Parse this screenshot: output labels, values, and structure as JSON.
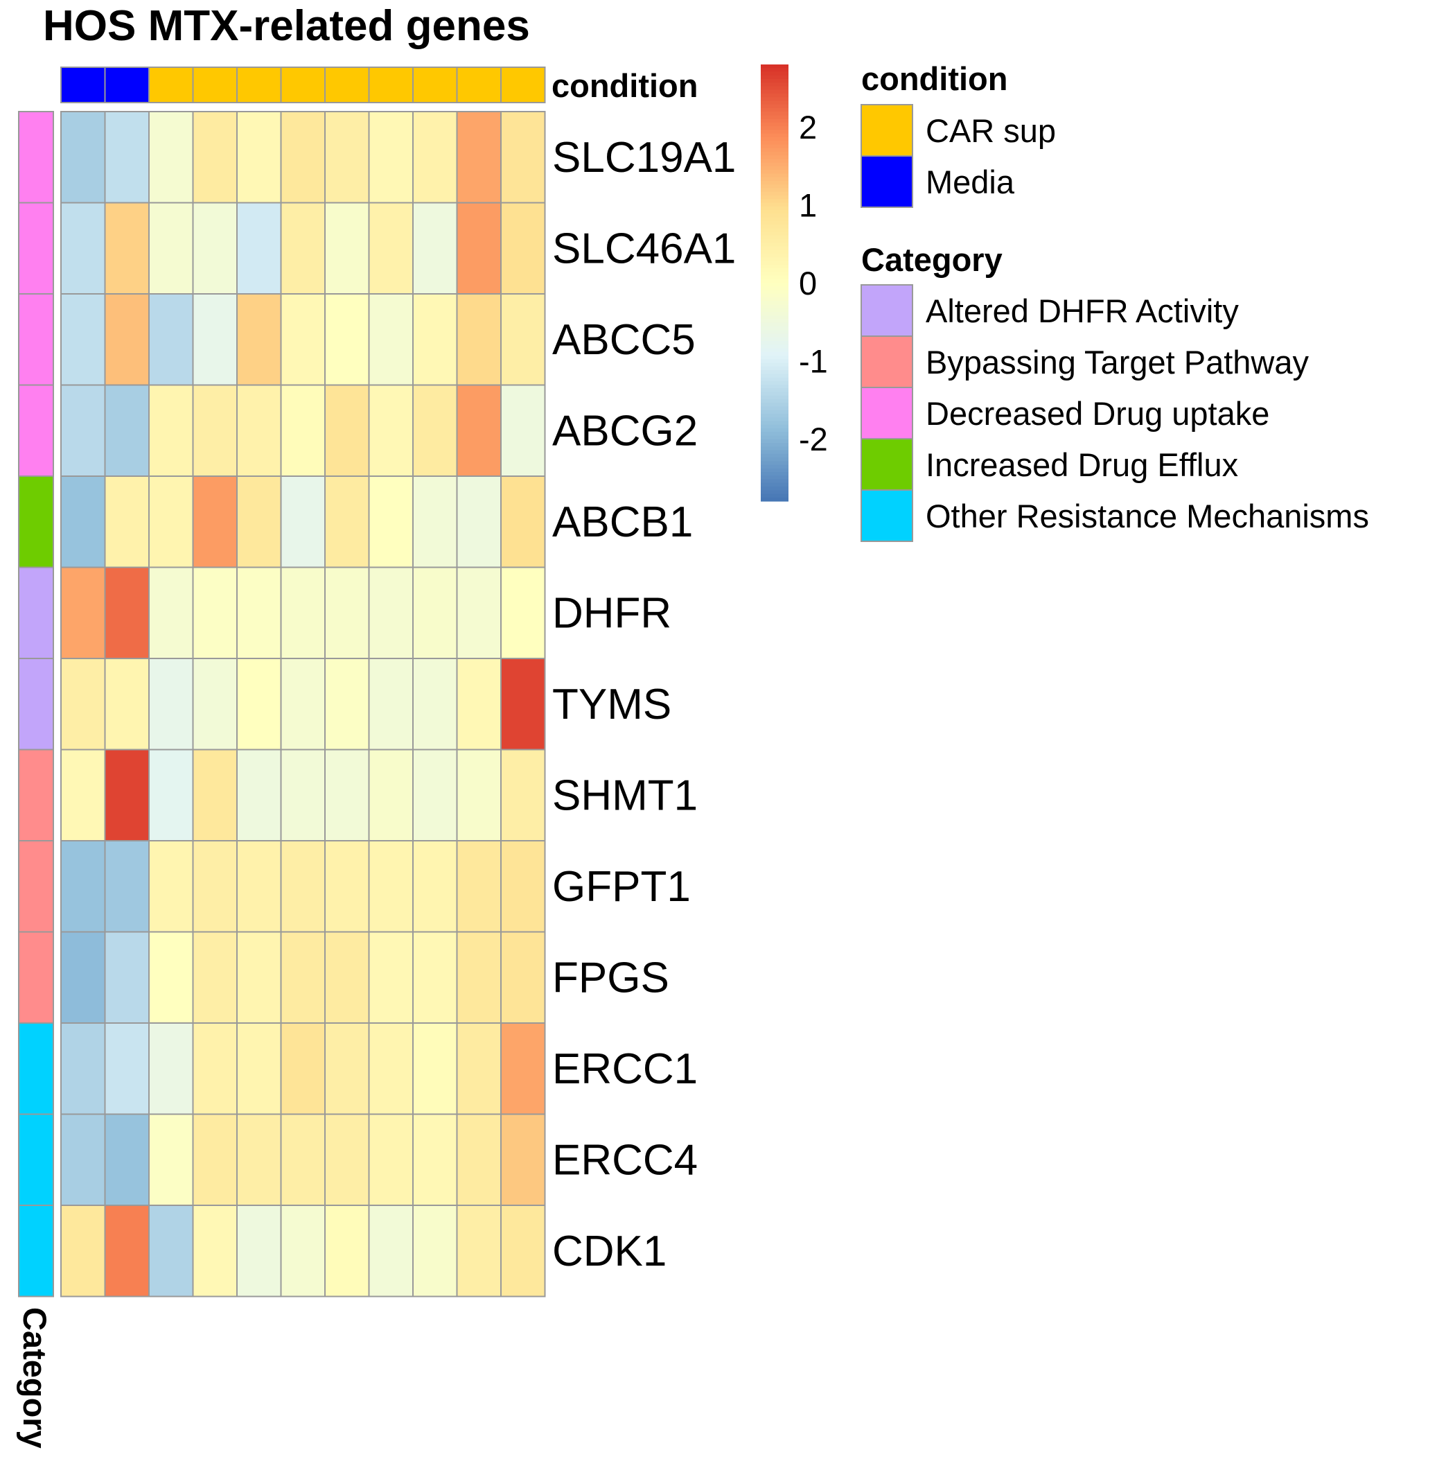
{
  "chart_data": {
    "type": "heatmap",
    "title": "HOS MTX-related genes",
    "rows": [
      "SLC19A1",
      "SLC46A1",
      "ABCC5",
      "ABCG2",
      "ABCB1",
      "DHFR",
      "TYMS",
      "SHMT1",
      "GFPT1",
      "FPGS",
      "ERCC1",
      "ERCC4",
      "CDK1"
    ],
    "row_category": [
      "Decreased Drug uptake",
      "Decreased Drug uptake",
      "Decreased Drug uptake",
      "Decreased Drug uptake",
      "Increased Drug Efflux",
      "Altered DHFR Activity",
      "Altered DHFR Activity",
      "Bypassing Target Pathway",
      "Bypassing Target Pathway",
      "Bypassing Target Pathway",
      "Other Resistance Mechanisms",
      "Other Resistance Mechanisms",
      "Other Resistance Mechanisms"
    ],
    "column_condition": [
      "Media",
      "Media",
      "CAR sup",
      "CAR sup",
      "CAR sup",
      "CAR sup",
      "CAR sup",
      "CAR sup",
      "CAR sup",
      "CAR sup",
      "CAR sup"
    ],
    "values": [
      [
        -1.6,
        -1.3,
        -0.3,
        0.6,
        0.2,
        0.7,
        0.5,
        0.2,
        0.4,
        1.6,
        0.8
      ],
      [
        -1.3,
        1.1,
        -0.3,
        -0.4,
        -1.1,
        0.5,
        -0.2,
        0.4,
        -0.5,
        1.7,
        0.9
      ],
      [
        -1.3,
        1.3,
        -1.4,
        -0.7,
        1.1,
        0.2,
        0.0,
        -0.3,
        0.2,
        1.0,
        0.5
      ],
      [
        -1.4,
        -1.6,
        0.3,
        0.5,
        0.4,
        0.1,
        0.8,
        0.2,
        0.6,
        1.7,
        -0.5
      ],
      [
        -1.8,
        0.4,
        0.3,
        1.7,
        0.7,
        -0.7,
        0.6,
        0.0,
        -0.4,
        -0.5,
        0.9
      ],
      [
        1.6,
        2.2,
        -0.3,
        -0.1,
        -0.1,
        -0.2,
        -0.2,
        -0.3,
        -0.2,
        -0.3,
        0.0
      ],
      [
        0.5,
        0.3,
        -0.7,
        -0.4,
        0.0,
        -0.3,
        -0.1,
        -0.4,
        -0.4,
        0.2,
        2.6
      ],
      [
        0.2,
        2.6,
        -0.8,
        0.7,
        -0.5,
        -0.4,
        -0.4,
        -0.2,
        -0.4,
        -0.2,
        0.5
      ],
      [
        -1.8,
        -1.7,
        0.3,
        0.5,
        0.4,
        0.5,
        0.4,
        0.3,
        0.3,
        0.7,
        0.8
      ],
      [
        -1.9,
        -1.4,
        0.0,
        0.5,
        0.3,
        0.6,
        0.6,
        0.2,
        0.2,
        0.7,
        0.8
      ],
      [
        -1.5,
        -1.2,
        -0.6,
        0.4,
        0.3,
        0.8,
        0.5,
        0.3,
        0.1,
        0.6,
        1.6
      ],
      [
        -1.6,
        -1.8,
        -0.1,
        0.6,
        0.5,
        0.5,
        0.5,
        0.3,
        0.2,
        0.6,
        1.2
      ],
      [
        0.7,
        2.0,
        -1.5,
        0.2,
        -0.5,
        -0.3,
        0.1,
        -0.4,
        -0.2,
        0.5,
        0.7
      ]
    ],
    "scale": {
      "min": -2.8,
      "max": 2.8,
      "ticks": [
        -2,
        -1,
        0,
        1,
        2
      ],
      "colors": [
        "#4575B4",
        "#91BFDB",
        "#E0F3F8",
        "#FFFFBF",
        "#FEE090",
        "#FC8D59",
        "#D73027"
      ]
    },
    "row_annotation_title": "Category",
    "column_annotation_title": "condition",
    "legends": {
      "condition": {
        "title": "condition",
        "items": [
          {
            "label": "CAR sup",
            "color": "#FFC800"
          },
          {
            "label": "Media",
            "color": "#0000FF"
          }
        ]
      },
      "category": {
        "title": "Category",
        "items": [
          {
            "label": "Altered DHFR Activity",
            "color": "#C2A5FA"
          },
          {
            "label": "Bypassing Target Pathway",
            "color": "#FF8C8C"
          },
          {
            "label": "Decreased Drug uptake",
            "color": "#FF80F0"
          },
          {
            "label": "Increased Drug Efflux",
            "color": "#6ECC00"
          },
          {
            "label": "Other Resistance Mechanisms",
            "color": "#00D2FF"
          }
        ]
      }
    }
  }
}
